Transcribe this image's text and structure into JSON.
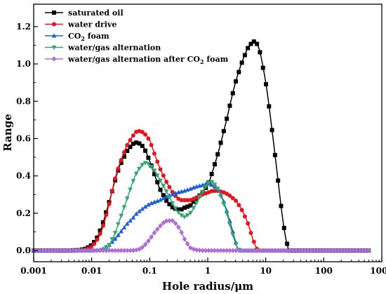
{
  "chart_data": {
    "type": "line",
    "xscale": "log",
    "xlabel": "Hole radius/μm",
    "ylabel": "Range",
    "xlim": [
      0.001,
      1000
    ],
    "ylim": [
      -0.06,
      1.32
    ],
    "xticks": [
      0.001,
      0.01,
      0.1,
      1,
      10,
      100,
      1000
    ],
    "xtick_labels": [
      "0.001",
      "0.01",
      "0.1",
      "1",
      "10",
      "100",
      "1000"
    ],
    "yticks": [
      0,
      0.2,
      0.4,
      0.6,
      0.8,
      1.0,
      1.2
    ],
    "ytick_labels": [
      "0.0",
      "0.2",
      "0.4",
      "0.6",
      "0.8",
      "1.0",
      "1.2"
    ],
    "grid": false,
    "legend": "top-left",
    "legend_labels": [
      {
        "pre": "saturated oil"
      },
      {
        "pre": "water drive"
      },
      {
        "pre": "CO",
        "sub": "2",
        "post": " foam"
      },
      {
        "pre": "water/gas alternation"
      },
      {
        "pre": "water/gas alternation after CO",
        "sub": "2",
        "post": " foam"
      }
    ],
    "series": [
      {
        "name": "saturated oil",
        "color": "#000000",
        "marker": "square",
        "x": [
          0.001,
          0.004,
          0.006,
          0.008,
          0.01,
          0.012,
          0.015,
          0.02,
          0.025,
          0.03,
          0.04,
          0.05,
          0.06,
          0.07,
          0.08,
          0.1,
          0.12,
          0.15,
          0.2,
          0.25,
          0.3,
          0.35,
          0.4,
          0.5,
          0.6,
          0.7,
          0.8,
          1.0,
          1.2,
          1.5,
          2.0,
          2.5,
          3.0,
          4.0,
          5.0,
          6.0,
          6.5,
          7.0,
          8.0,
          10.0,
          12.0,
          15.0,
          18.0,
          20.0,
          22.0,
          24.0,
          26.0,
          40.0,
          100.0,
          300.0,
          650.0
        ],
        "y": [
          0.0,
          0.0,
          0.002,
          0.01,
          0.03,
          0.06,
          0.13,
          0.26,
          0.37,
          0.45,
          0.53,
          0.57,
          0.58,
          0.57,
          0.55,
          0.48,
          0.41,
          0.33,
          0.26,
          0.23,
          0.22,
          0.22,
          0.23,
          0.24,
          0.27,
          0.29,
          0.31,
          0.35,
          0.42,
          0.52,
          0.67,
          0.8,
          0.9,
          1.02,
          1.09,
          1.12,
          1.12,
          1.11,
          1.06,
          0.9,
          0.72,
          0.47,
          0.26,
          0.15,
          0.07,
          0.02,
          0.0,
          0.0,
          0.0,
          0.0,
          0.0
        ]
      },
      {
        "name": "water drive",
        "color": "#e8141b",
        "marker": "circle",
        "x": [
          0.001,
          0.005,
          0.008,
          0.01,
          0.012,
          0.015,
          0.02,
          0.025,
          0.03,
          0.04,
          0.05,
          0.06,
          0.07,
          0.08,
          0.1,
          0.12,
          0.15,
          0.2,
          0.25,
          0.3,
          0.35,
          0.4,
          0.5,
          0.6,
          0.7,
          0.8,
          1.0,
          1.2,
          1.5,
          2.0,
          2.5,
          3.0,
          3.5,
          4.0,
          5.0,
          6.0,
          7.0,
          7.5,
          10.0,
          100.0,
          650.0
        ],
        "y": [
          0.0,
          0.0,
          0.005,
          0.02,
          0.05,
          0.11,
          0.25,
          0.38,
          0.46,
          0.56,
          0.61,
          0.64,
          0.64,
          0.63,
          0.59,
          0.52,
          0.44,
          0.36,
          0.31,
          0.28,
          0.27,
          0.27,
          0.27,
          0.28,
          0.29,
          0.3,
          0.31,
          0.32,
          0.32,
          0.31,
          0.29,
          0.27,
          0.24,
          0.21,
          0.14,
          0.06,
          0.01,
          0.0,
          0.0,
          0.0,
          0.0
        ]
      },
      {
        "name": "CO2 foam",
        "color": "#1f5fd6",
        "marker": "triangle-up",
        "x": [
          0.001,
          0.01,
          0.015,
          0.02,
          0.025,
          0.03,
          0.04,
          0.05,
          0.06,
          0.08,
          0.1,
          0.15,
          0.2,
          0.3,
          0.4,
          0.5,
          0.6,
          0.8,
          1.0,
          1.2,
          1.5,
          1.8,
          2.0,
          2.5,
          3.0,
          3.2,
          3.5,
          4.0,
          10.0,
          100.0,
          650.0
        ],
        "y": [
          0.0,
          0.0,
          0.005,
          0.03,
          0.06,
          0.09,
          0.14,
          0.17,
          0.2,
          0.23,
          0.25,
          0.27,
          0.29,
          0.31,
          0.32,
          0.33,
          0.34,
          0.35,
          0.36,
          0.35,
          0.33,
          0.28,
          0.24,
          0.14,
          0.05,
          0.02,
          0.0,
          0.0,
          0.0,
          0.0,
          0.0
        ]
      },
      {
        "name": "water/gas alternation",
        "color": "#2ea86b",
        "marker": "triangle-down",
        "x": [
          0.001,
          0.015,
          0.02,
          0.025,
          0.03,
          0.04,
          0.05,
          0.06,
          0.07,
          0.08,
          0.09,
          0.1,
          0.12,
          0.15,
          0.2,
          0.25,
          0.3,
          0.35,
          0.4,
          0.5,
          0.6,
          0.8,
          1.0,
          1.2,
          1.5,
          2.0,
          2.5,
          3.0,
          3.5,
          5.0,
          10.0,
          100.0,
          650.0
        ],
        "y": [
          0.0,
          0.0,
          0.03,
          0.09,
          0.16,
          0.27,
          0.36,
          0.42,
          0.45,
          0.47,
          0.47,
          0.46,
          0.43,
          0.38,
          0.31,
          0.25,
          0.21,
          0.19,
          0.18,
          0.2,
          0.24,
          0.31,
          0.36,
          0.37,
          0.33,
          0.23,
          0.12,
          0.04,
          0.0,
          0.0,
          0.0,
          0.0,
          0.0
        ]
      },
      {
        "name": "water/gas alternation after CO2 foam",
        "color": "#b26ad6",
        "marker": "diamond",
        "x": [
          0.001,
          0.01,
          0.05,
          0.06,
          0.07,
          0.08,
          0.1,
          0.12,
          0.15,
          0.18,
          0.2,
          0.25,
          0.3,
          0.35,
          0.4,
          0.45,
          0.5,
          0.6,
          0.8,
          1.0,
          10.0,
          100.0,
          650.0
        ],
        "y": [
          0.0,
          0.0,
          0.0,
          0.003,
          0.01,
          0.025,
          0.06,
          0.095,
          0.13,
          0.155,
          0.16,
          0.16,
          0.135,
          0.1,
          0.06,
          0.035,
          0.015,
          0.004,
          0.0,
          0.0,
          0.0,
          0.0,
          0.0
        ]
      }
    ]
  }
}
